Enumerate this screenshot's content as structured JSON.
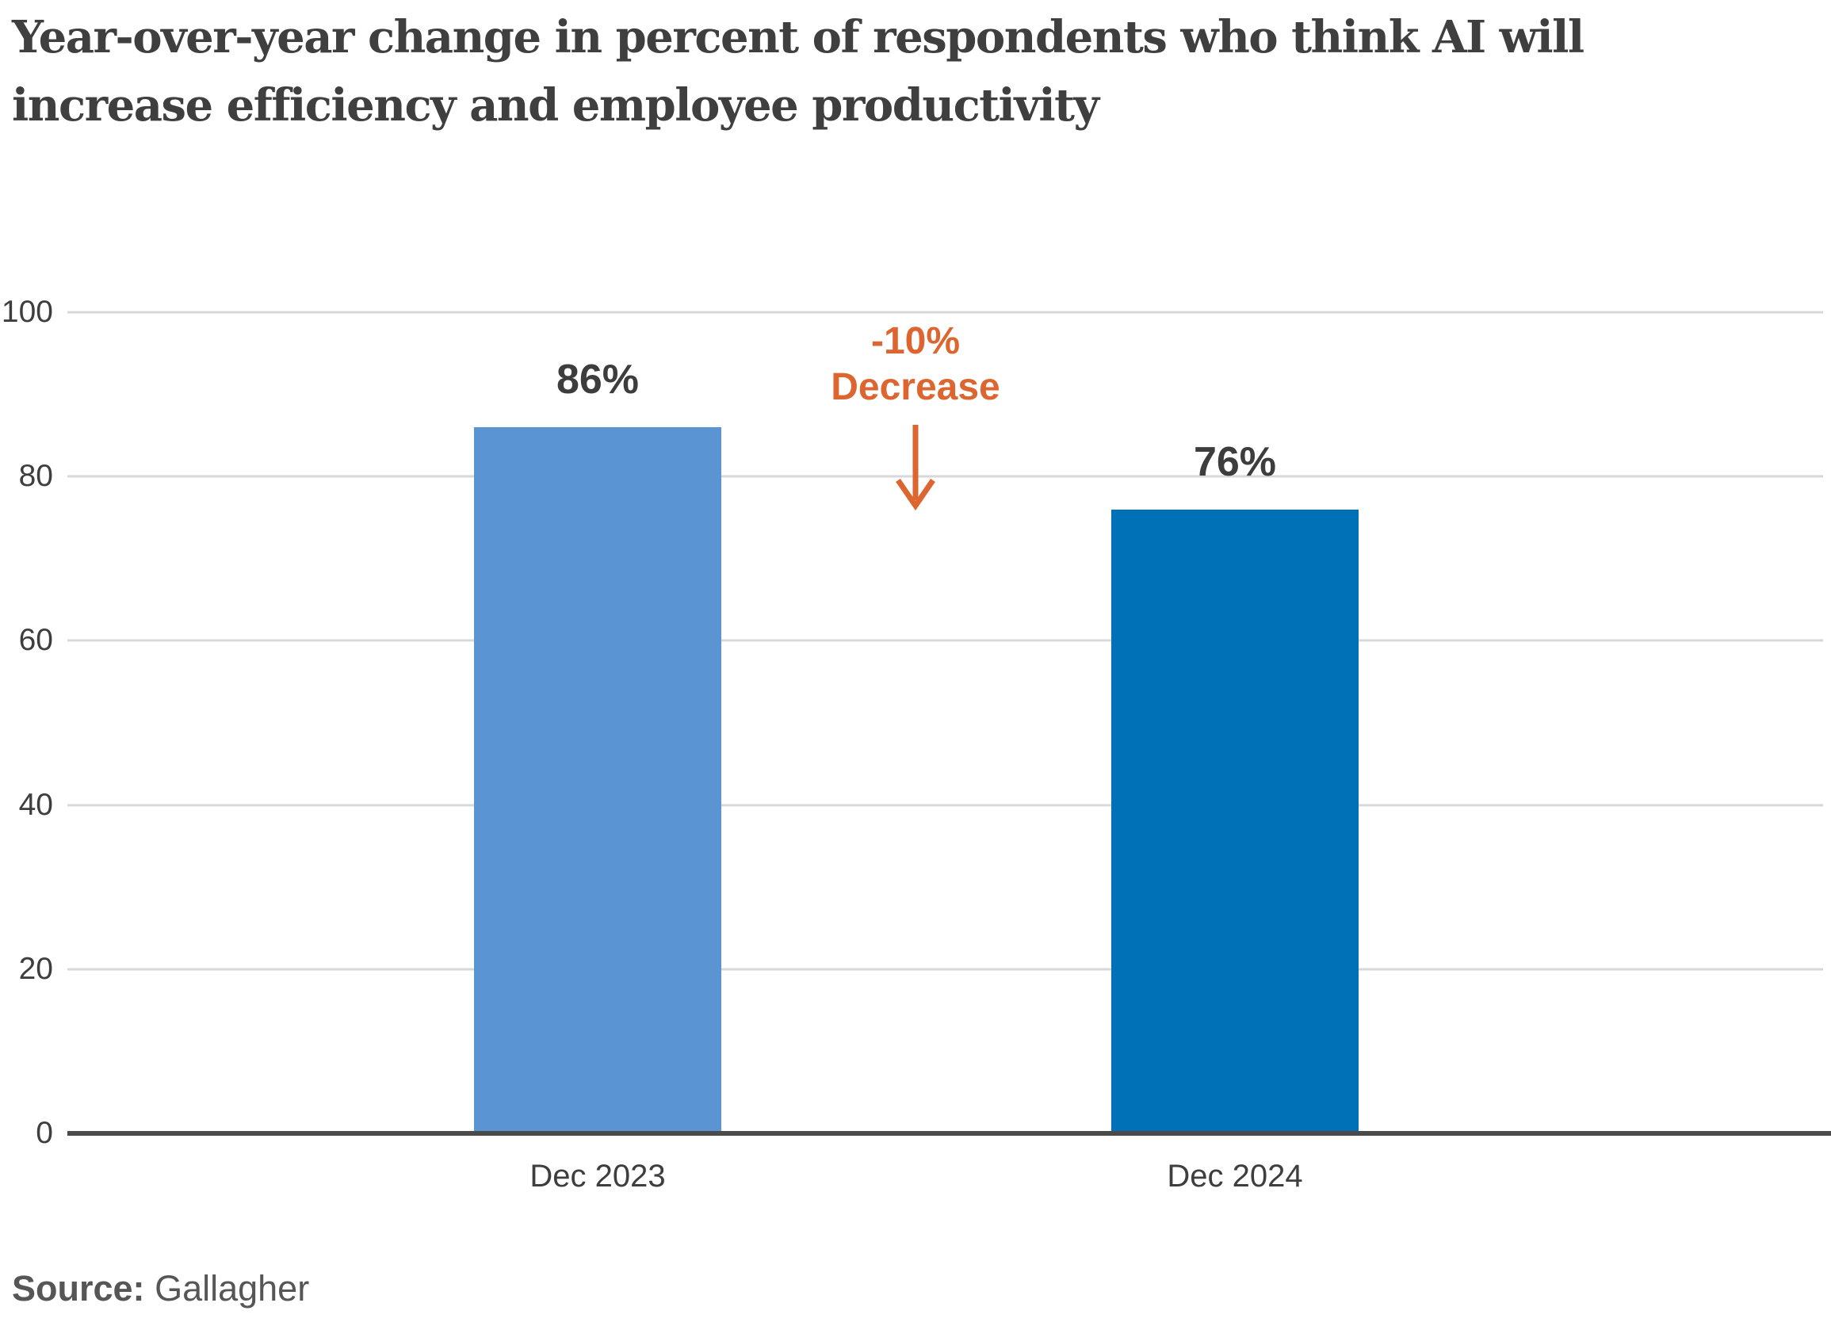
{
  "header": {
    "title": "Year-over-year change in percent of respondents who think AI will increase efficiency and employee productivity",
    "title_lines": [
      "Year-over-year change in percent of respondents who think AI will",
      "increase efficiency and employee productivity"
    ]
  },
  "chart_data": {
    "type": "bar",
    "title": "Year-over-year change in percent of respondents who think AI will increase efficiency and employee productivity",
    "categories": [
      "Dec 2023",
      "Dec 2024"
    ],
    "values": [
      86,
      76
    ],
    "value_labels": [
      "86%",
      "76%"
    ],
    "xlabel": "",
    "ylabel": "",
    "ylim": [
      0,
      100
    ],
    "yticks": [
      0,
      20,
      40,
      60,
      80,
      100
    ],
    "grid": "horizontal",
    "legend": "none",
    "bar_colors": [
      "#5B94D3",
      "#0071B7"
    ],
    "annotation": {
      "line1": "-10%",
      "line2": "Decrease",
      "icon": "down-arrow",
      "color": "#DD6630"
    }
  },
  "footer": {
    "source_label": "Source:",
    "source_value": "Gallagher"
  },
  "colors": {
    "background": "#FFFFFF",
    "title_text": "#3F3F3F",
    "axis_text": "#3E3E3E",
    "gridline": "#D8D8D8",
    "axis_line": "#4A4A4A",
    "bar_dec_2023": "#5B94D3",
    "bar_dec_2024": "#0071B7",
    "annotation_orange": "#DD6630",
    "source_text": "#565656"
  }
}
